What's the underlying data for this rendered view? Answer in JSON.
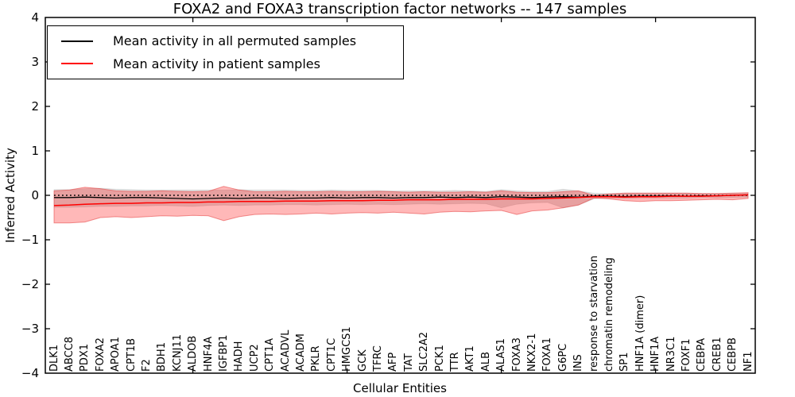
{
  "figure": {
    "title": "FOXA2 and FOXA3 transcription factor networks -- 147 samples",
    "xlabel": "Cellular Entities",
    "ylabel": "Inferred Activity"
  },
  "legend": {
    "items": [
      {
        "label": "Mean activity in all permuted samples",
        "color": "#000000"
      },
      {
        "label": "Mean activity in patient samples",
        "color": "#ff0000"
      }
    ]
  },
  "chart_data": {
    "type": "line",
    "title": "FOXA2 and FOXA3 transcription factor networks -- 147 samples",
    "xlabel": "Cellular Entities",
    "ylabel": "Inferred Activity",
    "ylim": [
      -4,
      4
    ],
    "grid": false,
    "legend_position": "upper left",
    "reference_line": {
      "y": 0,
      "style": "dotted",
      "color": "#000000"
    },
    "yticks": [
      {
        "v": 4,
        "label": "4"
      },
      {
        "v": 3,
        "label": "3"
      },
      {
        "v": 2,
        "label": "2"
      },
      {
        "v": 1,
        "label": "1"
      },
      {
        "v": 0,
        "label": "0"
      },
      {
        "v": -1,
        "label": "−1"
      },
      {
        "v": -2,
        "label": "−2"
      },
      {
        "v": -3,
        "label": "−3"
      },
      {
        "v": -4,
        "label": "−4"
      }
    ],
    "x_major_tick_indices": [
      9,
      19,
      29,
      39
    ],
    "categories": [
      "DLK1",
      "ABCC8",
      "PDX1",
      "FOXA2",
      "APOA1",
      "CPT1B",
      "F2",
      "BDH1",
      "KCNJ11",
      "ALDOB",
      "HNF4A",
      "IGFBP1",
      "HADH",
      "UCP2",
      "CPT1A",
      "ACADVL",
      "ACADM",
      "PKLR",
      "CPT1C",
      "HMGCS1",
      "GCK",
      "TFRC",
      "AFP",
      "TAT",
      "SLC2A2",
      "PCK1",
      "TTR",
      "AKT1",
      "ALB",
      "ALAS1",
      "FOXA3",
      "NKX2-1",
      "FOXA1",
      "G6PC",
      "INS",
      "response to starvation",
      "chromatin remodeling",
      "SP1",
      "HNF1A (dimer)",
      "HNF1A",
      "NR3C1",
      "FOXF1",
      "CEBPA",
      "CREB1",
      "CEBPB",
      "NF1"
    ],
    "series": [
      {
        "name": "Mean activity in all permuted samples",
        "color": "#000000",
        "band_color": "rgba(0,0,0,0.13)",
        "band_edge_color": "rgba(0,0,0,0.08)",
        "values": [
          -0.05,
          -0.05,
          -0.04,
          -0.05,
          -0.06,
          -0.05,
          -0.05,
          -0.06,
          -0.07,
          -0.08,
          -0.07,
          -0.06,
          -0.07,
          -0.06,
          -0.06,
          -0.07,
          -0.06,
          -0.06,
          -0.05,
          -0.06,
          -0.05,
          -0.05,
          -0.06,
          -0.05,
          -0.05,
          -0.04,
          -0.05,
          -0.04,
          -0.05,
          -0.03,
          -0.04,
          -0.05,
          -0.04,
          -0.03,
          -0.04,
          -0.02,
          -0.02,
          -0.03,
          -0.02,
          -0.02,
          -0.01,
          -0.02,
          -0.01,
          -0.01,
          0.0,
          0.01
        ],
        "band_upper": [
          0.13,
          0.13,
          0.15,
          0.16,
          0.14,
          0.13,
          0.12,
          0.12,
          0.12,
          0.12,
          0.12,
          0.12,
          0.13,
          0.12,
          0.12,
          0.12,
          0.11,
          0.11,
          0.12,
          0.11,
          0.11,
          0.11,
          0.1,
          0.1,
          0.1,
          0.1,
          0.11,
          0.1,
          0.09,
          0.13,
          0.1,
          0.09,
          0.09,
          0.14,
          0.1,
          0.05,
          0.04,
          0.05,
          0.05,
          0.05,
          0.05,
          0.05,
          0.04,
          0.04,
          0.05,
          0.04
        ],
        "band_lower": [
          -0.27,
          -0.27,
          -0.26,
          -0.25,
          -0.25,
          -0.24,
          -0.24,
          -0.23,
          -0.24,
          -0.25,
          -0.23,
          -0.22,
          -0.23,
          -0.22,
          -0.22,
          -0.21,
          -0.21,
          -0.22,
          -0.21,
          -0.2,
          -0.21,
          -0.2,
          -0.21,
          -0.2,
          -0.19,
          -0.2,
          -0.19,
          -0.18,
          -0.19,
          -0.28,
          -0.2,
          -0.17,
          -0.16,
          -0.28,
          -0.22,
          -0.08,
          -0.06,
          -0.07,
          -0.06,
          -0.06,
          -0.06,
          -0.06,
          -0.05,
          -0.05,
          -0.05,
          -0.04
        ]
      },
      {
        "name": "Mean activity in patient samples",
        "color": "#ff0000",
        "band_color": "rgba(255,0,0,0.28)",
        "band_edge_color": "rgba(230,60,60,0.55)",
        "values": [
          -0.23,
          -0.22,
          -0.2,
          -0.19,
          -0.18,
          -0.18,
          -0.17,
          -0.17,
          -0.16,
          -0.16,
          -0.15,
          -0.15,
          -0.14,
          -0.14,
          -0.14,
          -0.13,
          -0.13,
          -0.13,
          -0.12,
          -0.12,
          -0.12,
          -0.11,
          -0.11,
          -0.1,
          -0.1,
          -0.1,
          -0.09,
          -0.09,
          -0.09,
          -0.08,
          -0.08,
          -0.08,
          -0.07,
          -0.06,
          -0.05,
          -0.03,
          -0.03,
          -0.04,
          -0.03,
          -0.03,
          -0.02,
          -0.02,
          -0.02,
          -0.01,
          0.0,
          0.01
        ],
        "band_upper": [
          0.1,
          0.12,
          0.18,
          0.15,
          0.1,
          0.09,
          0.09,
          0.1,
          0.09,
          0.08,
          0.09,
          0.2,
          0.12,
          0.08,
          0.08,
          0.09,
          0.08,
          0.08,
          0.09,
          0.08,
          0.08,
          0.09,
          0.08,
          0.07,
          0.08,
          0.07,
          0.07,
          0.08,
          0.07,
          0.1,
          0.07,
          0.06,
          0.06,
          0.08,
          0.1,
          0.0,
          0.03,
          0.05,
          0.05,
          0.05,
          0.05,
          0.05,
          0.04,
          0.04,
          0.05,
          0.06
        ],
        "band_lower": [
          -0.62,
          -0.62,
          -0.6,
          -0.5,
          -0.48,
          -0.5,
          -0.48,
          -0.46,
          -0.47,
          -0.45,
          -0.46,
          -0.57,
          -0.48,
          -0.43,
          -0.42,
          -0.43,
          -0.42,
          -0.4,
          -0.42,
          -0.4,
          -0.39,
          -0.4,
          -0.38,
          -0.4,
          -0.42,
          -0.38,
          -0.36,
          -0.37,
          -0.35,
          -0.34,
          -0.43,
          -0.35,
          -0.33,
          -0.28,
          -0.22,
          -0.06,
          -0.08,
          -0.12,
          -0.14,
          -0.12,
          -0.12,
          -0.11,
          -0.1,
          -0.09,
          -0.1,
          -0.07
        ]
      }
    ]
  }
}
